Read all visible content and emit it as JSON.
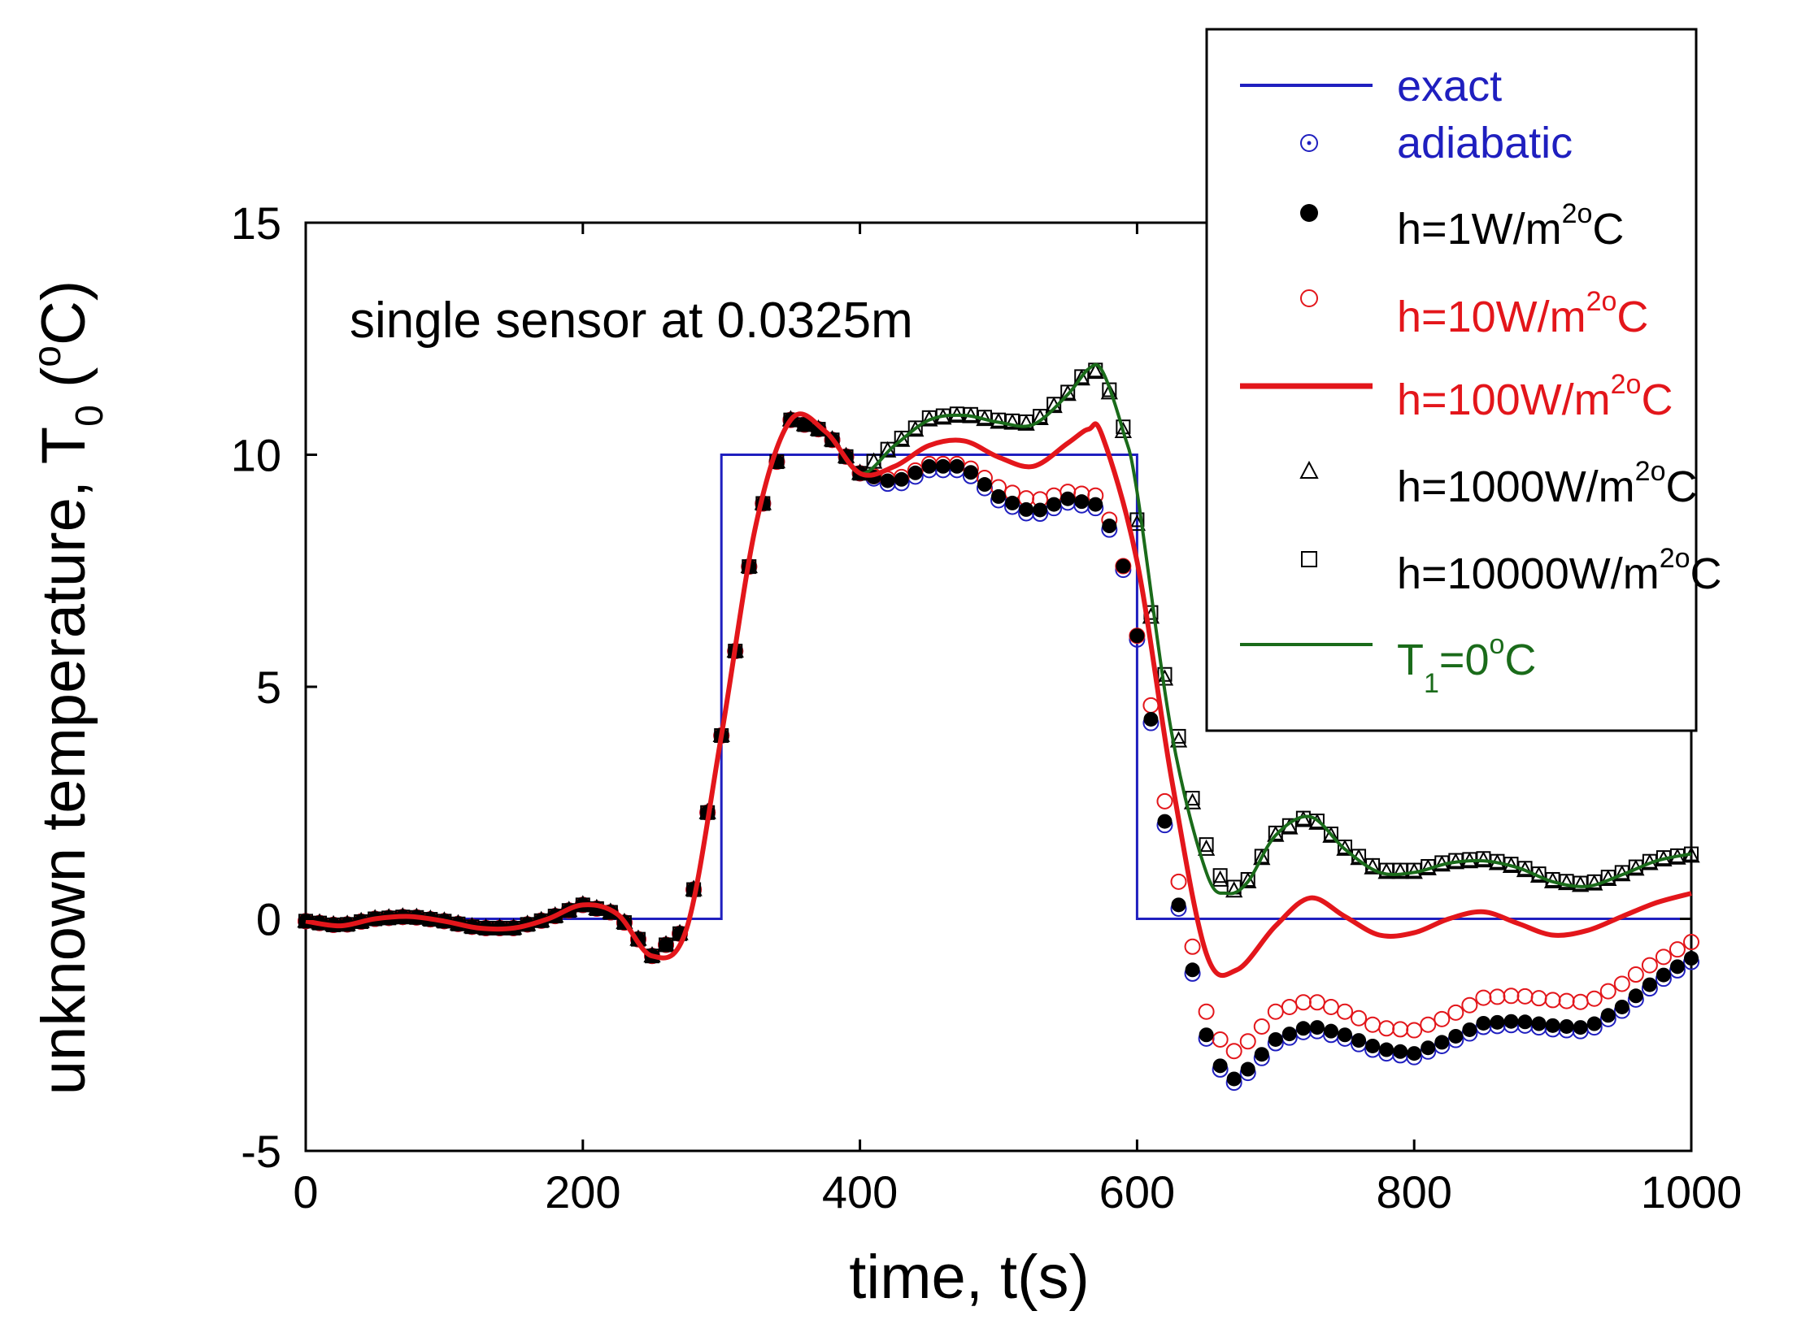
{
  "chart_data": {
    "type": "line",
    "annotation": "single sensor at 0.0325m",
    "xlabel": "time, t(s)",
    "ylabel": {
      "main": "unknown temperature, T",
      "sub": "0",
      "open": " (",
      "deg": "o",
      "close": "C)"
    },
    "xlim": [
      0,
      1000
    ],
    "ylim": [
      -5,
      15
    ],
    "xticks": [
      0,
      200,
      400,
      600,
      800,
      1000
    ],
    "yticks": [
      -5,
      0,
      5,
      10,
      15
    ],
    "colors": {
      "exact": "#1f1fbf",
      "adiabatic": "#1f1fbf",
      "h1": "#000000",
      "h10": "#e3161b",
      "h100": "#e3161b",
      "h1000": "#000000",
      "h10000": "#000000",
      "t1": "#1a6b1a"
    },
    "legend": {
      "position": "top-right",
      "entries": [
        {
          "key": "exact",
          "marker": "line",
          "color": "#1f1fbf",
          "text": "exact"
        },
        {
          "key": "adiabatic",
          "marker": "circle-dot",
          "color": "#1f1fbf",
          "text": "adiabatic"
        },
        {
          "key": "h1",
          "marker": "filled-circle",
          "color": "#000000",
          "pre": "h=1W/m",
          "sup": "2o",
          "post": "C"
        },
        {
          "key": "h10",
          "marker": "open-circle",
          "color": "#e3161b",
          "pre": "h=10W/m",
          "sup": "2o",
          "post": "C"
        },
        {
          "key": "h100",
          "marker": "thick-line",
          "color": "#e3161b",
          "pre": "h=100W/m",
          "sup": "2o",
          "post": "C"
        },
        {
          "key": "h1000",
          "marker": "triangle",
          "color": "#000000",
          "pre": "h=1000W/m",
          "sup": "2o",
          "post": "C"
        },
        {
          "key": "h10000",
          "marker": "square",
          "color": "#000000",
          "pre": "h=10000W/m",
          "sup": "2o",
          "post": "C"
        },
        {
          "key": "t1",
          "marker": "line",
          "color": "#1a6b1a",
          "pre": "T",
          "sub": "1",
          "mid": "=0",
          "sup": "o",
          "post": "C"
        }
      ]
    },
    "series": {
      "exact": {
        "x": [
          0,
          300,
          300,
          600,
          600,
          1000
        ],
        "y": [
          0,
          0,
          10,
          10,
          0,
          0
        ]
      },
      "common": {
        "x": [
          0,
          25,
          50,
          75,
          100,
          125,
          150,
          175,
          200,
          225,
          250,
          275,
          300,
          325,
          350,
          375,
          400
        ],
        "y": [
          -0.05,
          -0.15,
          0.0,
          0.05,
          -0.05,
          -0.2,
          -0.2,
          0.0,
          0.3,
          0.1,
          -0.8,
          -0.2,
          3.95,
          8.5,
          10.75,
          10.5,
          9.6
        ]
      },
      "h1": {
        "x": [
          400,
          425,
          450,
          475,
          500,
          525,
          550,
          575,
          590,
          600,
          610,
          625,
          650,
          665,
          675,
          700,
          725,
          750,
          775,
          800,
          825,
          850,
          875,
          900,
          925,
          950,
          975,
          1000
        ],
        "y": [
          9.6,
          9.4,
          9.75,
          9.75,
          9.1,
          8.75,
          9.05,
          8.9,
          7.6,
          6.1,
          4.3,
          1.0,
          -2.5,
          -3.5,
          -3.4,
          -2.6,
          -2.3,
          -2.5,
          -2.8,
          -2.9,
          -2.6,
          -2.25,
          -2.2,
          -2.3,
          -2.35,
          -1.9,
          -1.3,
          -0.85
        ]
      },
      "h10": {
        "x": [
          400,
          425,
          450,
          475,
          500,
          525,
          550,
          575,
          590,
          600,
          610,
          625,
          650,
          665,
          675,
          700,
          725,
          750,
          775,
          800,
          825,
          850,
          875,
          900,
          925,
          950,
          975,
          1000
        ],
        "y": [
          9.6,
          9.45,
          9.8,
          9.8,
          9.3,
          9.0,
          9.2,
          9.1,
          7.6,
          6.1,
          4.6,
          1.5,
          -2.0,
          -2.9,
          -2.8,
          -2.0,
          -1.75,
          -2.0,
          -2.35,
          -2.4,
          -2.1,
          -1.7,
          -1.65,
          -1.75,
          -1.8,
          -1.4,
          -0.9,
          -0.5
        ]
      },
      "h100": {
        "x": [
          400,
          425,
          450,
          475,
          500,
          525,
          550,
          565,
          575,
          600,
          625,
          650,
          672,
          700,
          725,
          750,
          775,
          800,
          825,
          850,
          875,
          900,
          925,
          950,
          975,
          1000
        ],
        "y": [
          9.65,
          9.75,
          10.2,
          10.3,
          9.95,
          9.75,
          10.25,
          10.55,
          10.4,
          7.7,
          3.0,
          -0.75,
          -1.1,
          -0.15,
          0.45,
          0.05,
          -0.35,
          -0.3,
          0.0,
          0.15,
          -0.1,
          -0.35,
          -0.25,
          0.05,
          0.35,
          0.55
        ]
      },
      "h1000": {
        "x": [
          400,
          425,
          450,
          475,
          500,
          525,
          550,
          565,
          575,
          590,
          610,
          625,
          640,
          650,
          665,
          680,
          700,
          725,
          750,
          775,
          800,
          825,
          850,
          875,
          900,
          925,
          950,
          975,
          1000
        ],
        "y": [
          9.85,
          10.2,
          10.75,
          10.85,
          10.7,
          10.65,
          11.3,
          11.8,
          11.75,
          10.5,
          6.5,
          4.5,
          2.5,
          1.5,
          0.5,
          0.8,
          1.8,
          2.2,
          1.5,
          1.0,
          1.0,
          1.2,
          1.25,
          1.1,
          0.8,
          0.7,
          0.95,
          1.25,
          1.35
        ]
      },
      "h10000": {
        "x": [
          400,
          425,
          450,
          475,
          500,
          525,
          550,
          565,
          575,
          590,
          610,
          625,
          640,
          650,
          665,
          680,
          700,
          725,
          750,
          775,
          800,
          825,
          850,
          875,
          900,
          925,
          950,
          975,
          1000
        ],
        "y": [
          9.9,
          10.25,
          10.8,
          10.9,
          10.75,
          10.7,
          11.35,
          11.85,
          11.8,
          10.6,
          6.6,
          4.6,
          2.6,
          1.6,
          0.6,
          0.85,
          1.85,
          2.25,
          1.55,
          1.05,
          1.05,
          1.25,
          1.3,
          1.15,
          0.85,
          0.75,
          1.0,
          1.3,
          1.4
        ]
      },
      "t1": {
        "x": [
          400,
          425,
          450,
          475,
          500,
          525,
          550,
          565,
          575,
          590,
          600,
          625,
          650,
          665,
          680,
          700,
          725,
          750,
          775,
          800,
          825,
          850,
          875,
          900,
          925,
          950,
          975,
          1000
        ],
        "y": [
          9.85,
          10.2,
          10.75,
          10.85,
          10.7,
          10.65,
          11.3,
          11.85,
          11.8,
          10.5,
          9.2,
          4.0,
          1.0,
          0.55,
          0.8,
          1.8,
          2.2,
          1.5,
          1.0,
          1.0,
          1.2,
          1.25,
          1.1,
          0.8,
          0.7,
          0.95,
          1.25,
          1.4
        ]
      }
    }
  }
}
